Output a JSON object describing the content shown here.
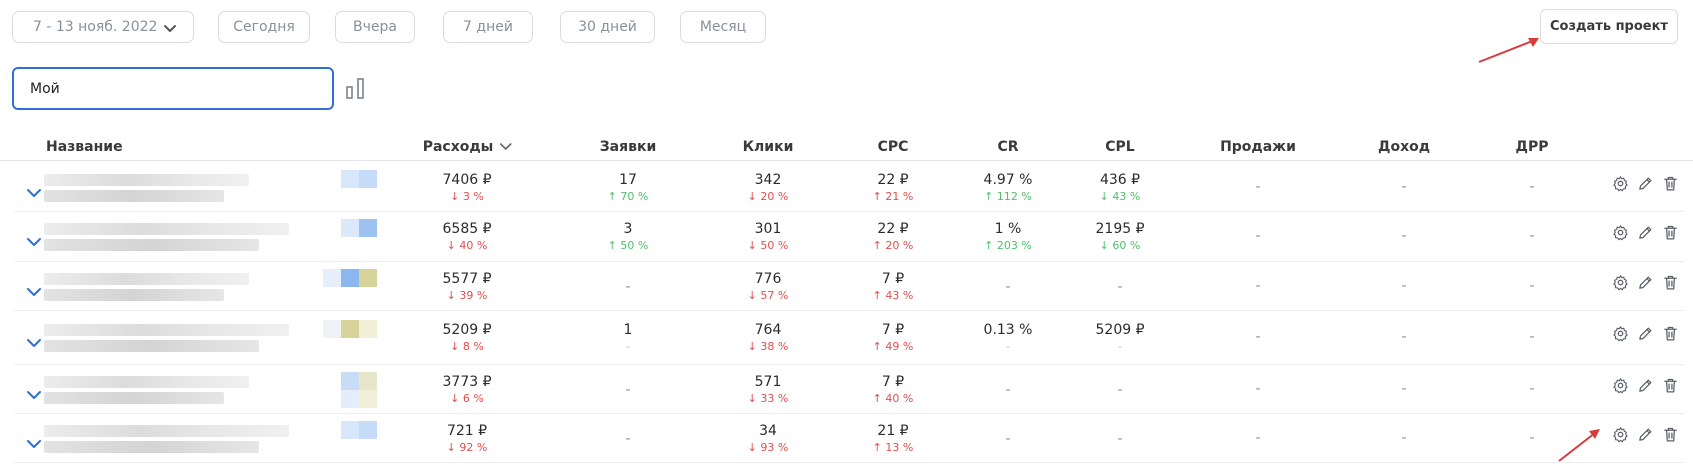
{
  "toolbar": {
    "date_range": "7 - 13 нояб. 2022",
    "period_buttons": [
      "Сегодня",
      "Вчера",
      "7 дней",
      "30 дней",
      "Месяц"
    ],
    "create_project_label": "Создать проект"
  },
  "search": {
    "value": "Мой"
  },
  "table": {
    "columns": {
      "name": "Название",
      "spend": "Расходы",
      "leads": "Заявки",
      "clicks": "Клики",
      "cpc": "CPC",
      "cr": "CR",
      "cpl": "CPL",
      "sales": "Продажи",
      "income": "Доход",
      "drr": "ДРР"
    },
    "rows": [
      {
        "spend": "7406 ₽",
        "spend_delta": "↓ 3 %",
        "spend_dir": "down",
        "leads": "17",
        "leads_delta": "↑ 70 %",
        "leads_dir": "up",
        "clicks": "342",
        "clicks_delta": "↓ 20 %",
        "clicks_dir": "down",
        "cpc": "22 ₽",
        "cpc_delta": "↑ 21 %",
        "cpc_dir": "down",
        "cr": "4.97 %",
        "cr_delta": "↑ 112 %",
        "cr_dir": "up",
        "cpl": "436 ₽",
        "cpl_delta": "↓ 43 %",
        "cpl_dir": "up",
        "sales": "-",
        "income": "-",
        "drr": "-"
      },
      {
        "spend": "6585 ₽",
        "spend_delta": "↓ 40 %",
        "spend_dir": "down",
        "leads": "3",
        "leads_delta": "↑ 50 %",
        "leads_dir": "up",
        "clicks": "301",
        "clicks_delta": "↓ 50 %",
        "clicks_dir": "down",
        "cpc": "22 ₽",
        "cpc_delta": "↑ 20 %",
        "cpc_dir": "down",
        "cr": "1 %",
        "cr_delta": "↑ 203 %",
        "cr_dir": "up",
        "cpl": "2195 ₽",
        "cpl_delta": "↓ 60 %",
        "cpl_dir": "up",
        "sales": "-",
        "income": "-",
        "drr": "-"
      },
      {
        "spend": "5577 ₽",
        "spend_delta": "↓ 39 %",
        "spend_dir": "down",
        "leads": "-",
        "leads_delta": "",
        "leads_dir": "none",
        "clicks": "776",
        "clicks_delta": "↓ 57 %",
        "clicks_dir": "down",
        "cpc": "7 ₽",
        "cpc_delta": "↑ 43 %",
        "cpc_dir": "down",
        "cr": "-",
        "cr_delta": "",
        "cr_dir": "none",
        "cpl": "-",
        "cpl_delta": "",
        "cpl_dir": "none",
        "sales": "-",
        "income": "-",
        "drr": "-"
      },
      {
        "spend": "5209 ₽",
        "spend_delta": "↓ 8 %",
        "spend_dir": "down",
        "leads": "1",
        "leads_delta": "-",
        "leads_dir": "none",
        "clicks": "764",
        "clicks_delta": "↓ 38 %",
        "clicks_dir": "down",
        "cpc": "7 ₽",
        "cpc_delta": "↑ 49 %",
        "cpc_dir": "down",
        "cr": "0.13 %",
        "cr_delta": "-",
        "cr_dir": "none",
        "cpl": "5209 ₽",
        "cpl_delta": "-",
        "cpl_dir": "none",
        "sales": "-",
        "income": "-",
        "drr": "-"
      },
      {
        "spend": "3773 ₽",
        "spend_delta": "↓ 6 %",
        "spend_dir": "down",
        "leads": "-",
        "leads_delta": "",
        "leads_dir": "none",
        "clicks": "571",
        "clicks_delta": "↓ 33 %",
        "clicks_dir": "down",
        "cpc": "7 ₽",
        "cpc_delta": "↑ 40 %",
        "cpc_dir": "down",
        "cr": "-",
        "cr_delta": "",
        "cr_dir": "none",
        "cpl": "-",
        "cpl_delta": "",
        "cpl_dir": "none",
        "sales": "-",
        "income": "-",
        "drr": "-"
      },
      {
        "spend": "721 ₽",
        "spend_delta": "↓ 92 %",
        "spend_dir": "down",
        "leads": "-",
        "leads_delta": "",
        "leads_dir": "none",
        "clicks": "34",
        "clicks_delta": "↓ 93 %",
        "clicks_dir": "down",
        "cpc": "21 ₽",
        "cpc_delta": "↑ 13 %",
        "cpc_dir": "down",
        "cr": "-",
        "cr_delta": "",
        "cr_dir": "none",
        "cpl": "-",
        "cpl_delta": "",
        "cpl_dir": "none",
        "sales": "-",
        "income": "-",
        "drr": "-"
      }
    ]
  },
  "colors": {
    "accent": "#2f6fd6",
    "negative": "#e24e4e",
    "positive": "#4fbf6a",
    "arrow": "#d93a3a",
    "icon": "#5a5f6a"
  },
  "icons": {
    "date_chevron": "chevron-down-icon",
    "sort": "chevron-down-icon",
    "expand": "chevron-down-icon",
    "chart_toggle": "bar-chart-icon",
    "settings": "gear-icon",
    "edit": "pencil-icon",
    "delete": "trash-icon"
  }
}
